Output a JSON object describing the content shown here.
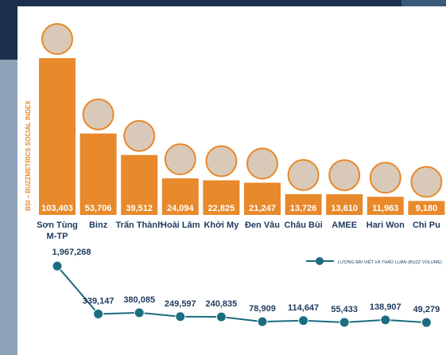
{
  "chart_data": [
    {
      "type": "bar",
      "y_label": "BSI – BUZZMETRICS SOCIAL INDEX",
      "categories": [
        "Sơn Tùng\nM-TP",
        "Binz",
        "Trấn Thành",
        "Hoài Lâm",
        "Khởi My",
        "Đen Vâu",
        "Châu Bùi",
        "AMEE",
        "Hari Won",
        "Chi Pu"
      ],
      "values": [
        103403,
        53706,
        39512,
        24094,
        22825,
        21247,
        13726,
        13610,
        11963,
        9180
      ],
      "value_labels": [
        "103,403",
        "53,706",
        "39,512",
        "24,094",
        "22,825",
        "21,247",
        "13,726",
        "13,610",
        "11,963",
        "9,180"
      ],
      "color": "#e8892b",
      "ylim": [
        0,
        105000
      ]
    },
    {
      "type": "line",
      "series": [
        {
          "name": "LƯỢNG BÀI VIẾT VÀ THẢO LUẬN (BUZZ VOLUME)",
          "color": "#1b6d80",
          "values": [
            1967268,
            339147,
            380085,
            249597,
            240835,
            78909,
            114647,
            55433,
            138907,
            49279
          ],
          "value_labels": [
            "1,967,268",
            "339,147",
            "380,085",
            "249,597",
            "240,835",
            "78,909",
            "114,647",
            "55,433",
            "138,907",
            "49,279"
          ]
        }
      ],
      "ylim": [
        0,
        2000000
      ],
      "legend": "top-right"
    }
  ]
}
